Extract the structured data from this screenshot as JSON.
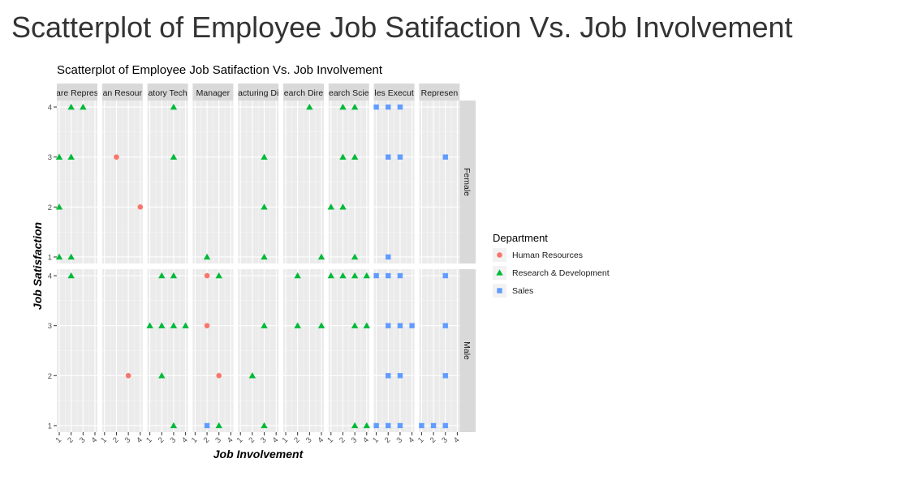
{
  "page": {
    "title": "Scatterplot of Employee Job Satifaction Vs. Job Involvement"
  },
  "chart_data": {
    "type": "scatter",
    "title": "Scatterplot of Employee Job Satifaction Vs. Job Involvement",
    "xlabel": "Job Involvement",
    "ylabel": "Job Satisfaction",
    "xlim": [
      1,
      4
    ],
    "ylim": [
      1,
      4
    ],
    "x_ticks": [
      "1",
      "2",
      "3",
      "4"
    ],
    "y_ticks": [
      "1",
      "2",
      "3",
      "4"
    ],
    "grid": true,
    "legend_position": "right",
    "legend_title": "Department",
    "series": [
      {
        "name": "Human Resources",
        "color": "#F8766D",
        "shape": "circle"
      },
      {
        "name": "Research & Development",
        "color": "#00BA38",
        "shape": "triangle"
      },
      {
        "name": "Sales",
        "color": "#619CFF",
        "shape": "square"
      }
    ],
    "column_facets": [
      "are Repres",
      "an Resour",
      "atory Tech",
      "Manager",
      "acturing Di",
      "earch Dire",
      "earch Scie",
      "les Execut",
      "Represen"
    ],
    "row_facets": [
      "Female",
      "Male"
    ],
    "points": [
      {
        "row": "Female",
        "col": 0,
        "dept": "Research & Development",
        "x": 1,
        "y": 1
      },
      {
        "row": "Female",
        "col": 0,
        "dept": "Research & Development",
        "x": 2,
        "y": 1
      },
      {
        "row": "Female",
        "col": 0,
        "dept": "Research & Development",
        "x": 1,
        "y": 2
      },
      {
        "row": "Female",
        "col": 0,
        "dept": "Research & Development",
        "x": 1,
        "y": 3
      },
      {
        "row": "Female",
        "col": 0,
        "dept": "Research & Development",
        "x": 2,
        "y": 3
      },
      {
        "row": "Female",
        "col": 0,
        "dept": "Research & Development",
        "x": 2,
        "y": 4
      },
      {
        "row": "Female",
        "col": 0,
        "dept": "Research & Development",
        "x": 3,
        "y": 4
      },
      {
        "row": "Female",
        "col": 1,
        "dept": "Human Resources",
        "x": 2,
        "y": 3
      },
      {
        "row": "Female",
        "col": 1,
        "dept": "Human Resources",
        "x": 4,
        "y": 2
      },
      {
        "row": "Female",
        "col": 2,
        "dept": "Research & Development",
        "x": 3,
        "y": 4
      },
      {
        "row": "Female",
        "col": 2,
        "dept": "Research & Development",
        "x": 3,
        "y": 3
      },
      {
        "row": "Female",
        "col": 3,
        "dept": "Research & Development",
        "x": 2,
        "y": 1
      },
      {
        "row": "Female",
        "col": 4,
        "dept": "Research & Development",
        "x": 3,
        "y": 3
      },
      {
        "row": "Female",
        "col": 4,
        "dept": "Research & Development",
        "x": 3,
        "y": 2
      },
      {
        "row": "Female",
        "col": 4,
        "dept": "Research & Development",
        "x": 3,
        "y": 1
      },
      {
        "row": "Female",
        "col": 5,
        "dept": "Research & Development",
        "x": 3,
        "y": 4
      },
      {
        "row": "Female",
        "col": 5,
        "dept": "Research & Development",
        "x": 4,
        "y": 1
      },
      {
        "row": "Female",
        "col": 6,
        "dept": "Research & Development",
        "x": 2,
        "y": 4
      },
      {
        "row": "Female",
        "col": 6,
        "dept": "Research & Development",
        "x": 3,
        "y": 4
      },
      {
        "row": "Female",
        "col": 6,
        "dept": "Research & Development",
        "x": 2,
        "y": 3
      },
      {
        "row": "Female",
        "col": 6,
        "dept": "Research & Development",
        "x": 3,
        "y": 3
      },
      {
        "row": "Female",
        "col": 6,
        "dept": "Research & Development",
        "x": 1,
        "y": 2
      },
      {
        "row": "Female",
        "col": 6,
        "dept": "Research & Development",
        "x": 2,
        "y": 2
      },
      {
        "row": "Female",
        "col": 6,
        "dept": "Research & Development",
        "x": 3,
        "y": 1
      },
      {
        "row": "Female",
        "col": 7,
        "dept": "Sales",
        "x": 1,
        "y": 4
      },
      {
        "row": "Female",
        "col": 7,
        "dept": "Sales",
        "x": 2,
        "y": 4
      },
      {
        "row": "Female",
        "col": 7,
        "dept": "Sales",
        "x": 3,
        "y": 4
      },
      {
        "row": "Female",
        "col": 7,
        "dept": "Sales",
        "x": 2,
        "y": 3
      },
      {
        "row": "Female",
        "col": 7,
        "dept": "Sales",
        "x": 3,
        "y": 3
      },
      {
        "row": "Female",
        "col": 7,
        "dept": "Sales",
        "x": 2,
        "y": 1
      },
      {
        "row": "Female",
        "col": 8,
        "dept": "Sales",
        "x": 3,
        "y": 3
      },
      {
        "row": "Male",
        "col": 0,
        "dept": "Research & Development",
        "x": 2,
        "y": 4
      },
      {
        "row": "Male",
        "col": 1,
        "dept": "Human Resources",
        "x": 3,
        "y": 2
      },
      {
        "row": "Male",
        "col": 2,
        "dept": "Research & Development",
        "x": 2,
        "y": 4
      },
      {
        "row": "Male",
        "col": 2,
        "dept": "Research & Development",
        "x": 3,
        "y": 4
      },
      {
        "row": "Male",
        "col": 2,
        "dept": "Research & Development",
        "x": 1,
        "y": 3
      },
      {
        "row": "Male",
        "col": 2,
        "dept": "Research & Development",
        "x": 2,
        "y": 3
      },
      {
        "row": "Male",
        "col": 2,
        "dept": "Research & Development",
        "x": 3,
        "y": 3
      },
      {
        "row": "Male",
        "col": 2,
        "dept": "Research & Development",
        "x": 4,
        "y": 3
      },
      {
        "row": "Male",
        "col": 2,
        "dept": "Research & Development",
        "x": 2,
        "y": 2
      },
      {
        "row": "Male",
        "col": 2,
        "dept": "Research & Development",
        "x": 3,
        "y": 1
      },
      {
        "row": "Male",
        "col": 3,
        "dept": "Human Resources",
        "x": 2,
        "y": 4
      },
      {
        "row": "Male",
        "col": 3,
        "dept": "Research & Development",
        "x": 3,
        "y": 4
      },
      {
        "row": "Male",
        "col": 3,
        "dept": "Human Resources",
        "x": 2,
        "y": 3
      },
      {
        "row": "Male",
        "col": 3,
        "dept": "Human Resources",
        "x": 3,
        "y": 2
      },
      {
        "row": "Male",
        "col": 3,
        "dept": "Sales",
        "x": 2,
        "y": 1
      },
      {
        "row": "Male",
        "col": 3,
        "dept": "Research & Development",
        "x": 3,
        "y": 1
      },
      {
        "row": "Male",
        "col": 4,
        "dept": "Research & Development",
        "x": 3,
        "y": 3
      },
      {
        "row": "Male",
        "col": 4,
        "dept": "Research & Development",
        "x": 2,
        "y": 2
      },
      {
        "row": "Male",
        "col": 4,
        "dept": "Research & Development",
        "x": 3,
        "y": 1
      },
      {
        "row": "Male",
        "col": 5,
        "dept": "Research & Development",
        "x": 2,
        "y": 4
      },
      {
        "row": "Male",
        "col": 5,
        "dept": "Research & Development",
        "x": 2,
        "y": 3
      },
      {
        "row": "Male",
        "col": 5,
        "dept": "Research & Development",
        "x": 4,
        "y": 3
      },
      {
        "row": "Male",
        "col": 6,
        "dept": "Research & Development",
        "x": 1,
        "y": 4
      },
      {
        "row": "Male",
        "col": 6,
        "dept": "Research & Development",
        "x": 2,
        "y": 4
      },
      {
        "row": "Male",
        "col": 6,
        "dept": "Research & Development",
        "x": 3,
        "y": 4
      },
      {
        "row": "Male",
        "col": 6,
        "dept": "Research & Development",
        "x": 4,
        "y": 4
      },
      {
        "row": "Male",
        "col": 6,
        "dept": "Research & Development",
        "x": 3,
        "y": 3
      },
      {
        "row": "Male",
        "col": 6,
        "dept": "Research & Development",
        "x": 4,
        "y": 3
      },
      {
        "row": "Male",
        "col": 6,
        "dept": "Research & Development",
        "x": 3,
        "y": 1
      },
      {
        "row": "Male",
        "col": 6,
        "dept": "Research & Development",
        "x": 4,
        "y": 1
      },
      {
        "row": "Male",
        "col": 7,
        "dept": "Sales",
        "x": 1,
        "y": 4
      },
      {
        "row": "Male",
        "col": 7,
        "dept": "Sales",
        "x": 2,
        "y": 4
      },
      {
        "row": "Male",
        "col": 7,
        "dept": "Sales",
        "x": 3,
        "y": 4
      },
      {
        "row": "Male",
        "col": 7,
        "dept": "Sales",
        "x": 2,
        "y": 3
      },
      {
        "row": "Male",
        "col": 7,
        "dept": "Sales",
        "x": 3,
        "y": 3
      },
      {
        "row": "Male",
        "col": 7,
        "dept": "Sales",
        "x": 4,
        "y": 3
      },
      {
        "row": "Male",
        "col": 7,
        "dept": "Sales",
        "x": 2,
        "y": 2
      },
      {
        "row": "Male",
        "col": 7,
        "dept": "Sales",
        "x": 3,
        "y": 2
      },
      {
        "row": "Male",
        "col": 7,
        "dept": "Sales",
        "x": 1,
        "y": 1
      },
      {
        "row": "Male",
        "col": 7,
        "dept": "Sales",
        "x": 2,
        "y": 1
      },
      {
        "row": "Male",
        "col": 7,
        "dept": "Sales",
        "x": 3,
        "y": 1
      },
      {
        "row": "Male",
        "col": 8,
        "dept": "Sales",
        "x": 3,
        "y": 4
      },
      {
        "row": "Male",
        "col": 8,
        "dept": "Sales",
        "x": 3,
        "y": 3
      },
      {
        "row": "Male",
        "col": 8,
        "dept": "Sales",
        "x": 3,
        "y": 2
      },
      {
        "row": "Male",
        "col": 8,
        "dept": "Sales",
        "x": 1,
        "y": 1
      },
      {
        "row": "Male",
        "col": 8,
        "dept": "Sales",
        "x": 2,
        "y": 1
      },
      {
        "row": "Male",
        "col": 8,
        "dept": "Sales",
        "x": 3,
        "y": 1
      }
    ]
  }
}
